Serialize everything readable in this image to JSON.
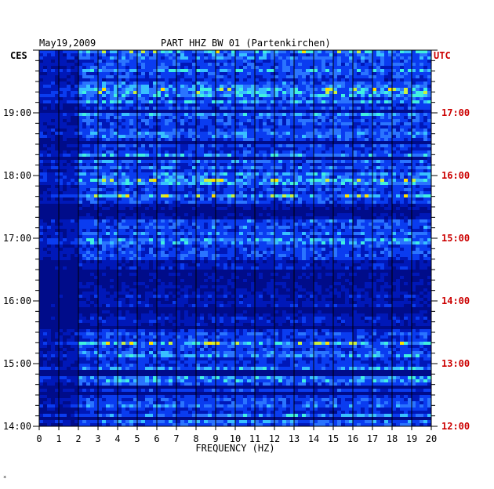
{
  "header": {
    "date": "May19,2009",
    "station": "PART HHZ BW 01 (Partenkirchen)"
  },
  "chart_data": {
    "type": "heatmap",
    "title": "PART HHZ BW 01 (Partenkirchen)",
    "xlabel": "FREQUENCY (HZ)",
    "xlim": [
      0,
      20
    ],
    "x_ticks": [
      "0",
      "1",
      "2",
      "3",
      "4",
      "5",
      "6",
      "7",
      "8",
      "9",
      "10",
      "11",
      "12",
      "13",
      "14",
      "15",
      "16",
      "17",
      "18",
      "19",
      "20"
    ],
    "left_axis_label": "CES",
    "right_axis_label": "UTC",
    "left_time_ticks": [
      "19:00",
      "18:00",
      "17:00",
      "16:00",
      "15:00",
      "14:00"
    ],
    "right_time_ticks": [
      "17:00",
      "16:00",
      "15:00",
      "14:00",
      "13:00",
      "12:00"
    ],
    "time_range_local": [
      "14:00",
      "20:00"
    ],
    "grid": true,
    "colors": {
      "background_low": "#000c8a",
      "mid": "#1f5cff",
      "high": "#3ad6ff",
      "peak": "#ffe000",
      "utc_label": "#cc0000",
      "axis": "#000000"
    }
  },
  "footer_mark": "*"
}
